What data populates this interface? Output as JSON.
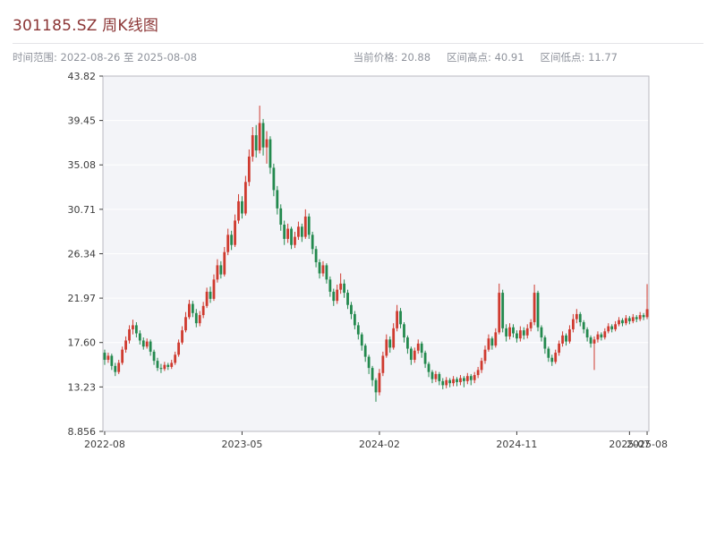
{
  "header": {
    "title": "301185.SZ 周K线图",
    "subtitle": "时间范围: 2022-08-26 至 2025-08-08",
    "stats": [
      {
        "label": "当前价格:",
        "value": "20.88"
      },
      {
        "label": "区间高点:",
        "value": "40.91"
      },
      {
        "label": "区间低点:",
        "value": "11.77"
      }
    ]
  },
  "chart_data": {
    "type": "candlestick",
    "title": "301185.SZ 周K线图",
    "symbol": "301185.SZ",
    "interval": "weekly",
    "date_start": "2022-08-26",
    "date_end": "2025-08-08",
    "current_price": 20.88,
    "range_high": 40.91,
    "range_low": 11.77,
    "ylim": [
      8.856,
      43.82
    ],
    "y_ticks": [
      "43.82",
      "39.45",
      "35.08",
      "30.71",
      "26.34",
      "21.97",
      "17.60",
      "13.23",
      "8.856"
    ],
    "y_tick_values": [
      43.82,
      39.45,
      35.08,
      30.71,
      26.34,
      21.97,
      17.6,
      13.23,
      8.856
    ],
    "x_ticks": [
      {
        "label": "2022-08",
        "week": 0
      },
      {
        "label": "2023-05",
        "week": 39
      },
      {
        "label": "2024-02",
        "week": 78
      },
      {
        "label": "2024-11",
        "week": 117
      },
      {
        "label": "2025-07",
        "week": 149
      },
      {
        "label": "2025-08",
        "week": 154
      }
    ],
    "up_color": "#cf3a2f",
    "down_color": "#23894e",
    "plot_bg": "#f3f4f8",
    "grid_color": "#ffffff",
    "axis_color": "#3c3c3c",
    "border_color": "#b9b9c0",
    "grid": true,
    "legend": false,
    "candles_ohlc": [
      [
        16.6,
        16.9,
        15.4,
        15.9
      ],
      [
        15.9,
        16.6,
        15.6,
        16.3
      ],
      [
        16.3,
        16.5,
        14.9,
        15.3
      ],
      [
        15.3,
        15.6,
        14.3,
        14.7
      ],
      [
        14.7,
        15.9,
        14.5,
        15.6
      ],
      [
        15.6,
        17.2,
        15.4,
        16.9
      ],
      [
        16.9,
        18.2,
        16.6,
        17.8
      ],
      [
        17.8,
        19.3,
        17.5,
        18.9
      ],
      [
        18.9,
        19.85,
        18.4,
        19.3
      ],
      [
        19.3,
        19.6,
        18.1,
        18.5
      ],
      [
        18.5,
        18.8,
        17.4,
        17.8
      ],
      [
        17.8,
        18.1,
        16.9,
        17.2
      ],
      [
        17.2,
        18.0,
        17.0,
        17.7
      ],
      [
        17.7,
        17.9,
        16.3,
        16.7
      ],
      [
        16.7,
        16.9,
        15.4,
        15.8
      ],
      [
        15.8,
        16.1,
        14.8,
        15.1
      ],
      [
        15.1,
        15.5,
        14.6,
        15.0
      ],
      [
        15.0,
        15.7,
        14.8,
        15.4
      ],
      [
        15.4,
        15.6,
        14.9,
        15.2
      ],
      [
        15.2,
        15.9,
        15.0,
        15.6
      ],
      [
        15.6,
        16.7,
        15.4,
        16.4
      ],
      [
        16.4,
        17.9,
        16.2,
        17.6
      ],
      [
        17.6,
        19.2,
        17.4,
        18.8
      ],
      [
        18.8,
        20.6,
        18.6,
        20.1
      ],
      [
        20.1,
        21.8,
        19.9,
        21.4
      ],
      [
        21.4,
        21.7,
        20.1,
        20.5
      ],
      [
        20.5,
        20.9,
        19.1,
        19.5
      ],
      [
        19.5,
        20.7,
        19.2,
        20.3
      ],
      [
        20.3,
        21.6,
        20.0,
        21.2
      ],
      [
        21.2,
        23.0,
        21.0,
        22.6
      ],
      [
        22.6,
        23.1,
        21.5,
        21.9
      ],
      [
        21.9,
        24.3,
        21.7,
        23.8
      ],
      [
        23.8,
        25.8,
        23.5,
        25.2
      ],
      [
        25.2,
        25.6,
        23.9,
        24.3
      ],
      [
        24.3,
        27.0,
        24.1,
        26.5
      ],
      [
        26.5,
        28.8,
        26.2,
        28.2
      ],
      [
        28.2,
        28.6,
        26.7,
        27.2
      ],
      [
        27.2,
        30.2,
        27.0,
        29.6
      ],
      [
        29.6,
        32.2,
        29.3,
        31.5
      ],
      [
        31.5,
        32.0,
        29.8,
        30.3
      ],
      [
        30.3,
        34.0,
        30.1,
        33.4
      ],
      [
        33.4,
        36.6,
        33.0,
        35.9
      ],
      [
        35.9,
        38.8,
        35.4,
        38.0
      ],
      [
        38.0,
        39.0,
        35.8,
        36.5
      ],
      [
        36.5,
        40.91,
        36.2,
        39.2
      ],
      [
        39.2,
        39.6,
        36.0,
        36.8
      ],
      [
        36.8,
        38.4,
        35.2,
        37.6
      ],
      [
        37.6,
        37.9,
        34.2,
        34.8
      ],
      [
        34.8,
        35.2,
        32.0,
        32.6
      ],
      [
        32.6,
        33.0,
        30.2,
        30.8
      ],
      [
        30.8,
        31.2,
        28.6,
        29.2
      ],
      [
        29.2,
        29.6,
        27.2,
        27.8
      ],
      [
        27.8,
        29.3,
        27.4,
        28.8
      ],
      [
        28.8,
        29.0,
        26.8,
        27.2
      ],
      [
        27.2,
        28.5,
        26.9,
        28.0
      ],
      [
        28.0,
        29.5,
        27.7,
        29.0
      ],
      [
        29.0,
        29.3,
        27.5,
        28.0
      ],
      [
        28.0,
        30.71,
        27.8,
        30.0
      ],
      [
        30.0,
        30.3,
        27.8,
        28.2
      ],
      [
        28.2,
        28.5,
        26.3,
        26.8
      ],
      [
        26.8,
        27.1,
        25.0,
        25.5
      ],
      [
        25.5,
        25.8,
        23.9,
        24.4
      ],
      [
        24.4,
        25.6,
        24.1,
        25.2
      ],
      [
        25.2,
        25.4,
        23.4,
        23.8
      ],
      [
        23.8,
        24.1,
        22.1,
        22.6
      ],
      [
        22.6,
        22.9,
        21.2,
        21.7
      ],
      [
        21.7,
        23.3,
        21.4,
        22.8
      ],
      [
        22.8,
        24.4,
        22.4,
        23.4
      ],
      [
        23.4,
        23.8,
        22.0,
        22.5
      ],
      [
        22.5,
        22.8,
        20.9,
        21.3
      ],
      [
        21.3,
        21.6,
        19.9,
        20.4
      ],
      [
        20.4,
        20.7,
        18.9,
        19.3
      ],
      [
        19.3,
        19.6,
        17.9,
        18.4
      ],
      [
        18.4,
        18.6,
        16.8,
        17.3
      ],
      [
        17.3,
        17.5,
        15.7,
        16.2
      ],
      [
        16.2,
        16.4,
        14.5,
        15.1
      ],
      [
        15.1,
        15.3,
        13.3,
        13.9
      ],
      [
        13.9,
        14.1,
        11.77,
        12.7
      ],
      [
        12.7,
        15.0,
        12.4,
        14.6
      ],
      [
        14.6,
        16.7,
        14.3,
        16.3
      ],
      [
        16.3,
        18.4,
        16.1,
        17.9
      ],
      [
        17.9,
        18.2,
        16.6,
        17.1
      ],
      [
        17.1,
        19.5,
        16.9,
        19.0
      ],
      [
        19.0,
        21.3,
        18.7,
        20.7
      ],
      [
        20.7,
        21.0,
        19.0,
        19.4
      ],
      [
        19.4,
        19.6,
        17.6,
        18.1
      ],
      [
        18.1,
        18.3,
        16.5,
        17.0
      ],
      [
        17.0,
        17.2,
        15.4,
        15.9
      ],
      [
        15.9,
        17.1,
        15.6,
        16.8
      ],
      [
        16.8,
        17.9,
        16.5,
        17.5
      ],
      [
        17.5,
        17.7,
        16.1,
        16.6
      ],
      [
        16.6,
        16.8,
        15.1,
        15.5
      ],
      [
        15.5,
        15.7,
        14.2,
        14.7
      ],
      [
        14.7,
        14.9,
        13.6,
        14.0
      ],
      [
        14.0,
        14.8,
        13.7,
        14.5
      ],
      [
        14.5,
        14.7,
        13.4,
        13.8
      ],
      [
        13.8,
        14.1,
        13.0,
        13.4
      ],
      [
        13.4,
        14.2,
        13.1,
        13.9
      ],
      [
        13.9,
        14.1,
        13.2,
        13.6
      ],
      [
        13.6,
        14.3,
        13.3,
        14.0
      ],
      [
        14.0,
        14.2,
        13.3,
        13.7
      ],
      [
        13.7,
        14.4,
        13.4,
        14.1
      ],
      [
        14.1,
        14.3,
        13.2,
        13.8
      ],
      [
        13.8,
        14.6,
        13.5,
        14.3
      ],
      [
        14.3,
        14.5,
        13.4,
        13.9
      ],
      [
        13.9,
        14.7,
        13.6,
        14.4
      ],
      [
        14.4,
        15.2,
        14.1,
        14.9
      ],
      [
        14.9,
        16.1,
        14.6,
        15.8
      ],
      [
        15.8,
        17.3,
        15.5,
        16.9
      ],
      [
        16.9,
        18.4,
        16.7,
        18.0
      ],
      [
        18.0,
        18.2,
        16.9,
        17.3
      ],
      [
        17.3,
        19.0,
        17.1,
        18.6
      ],
      [
        18.6,
        23.4,
        18.4,
        22.5
      ],
      [
        22.5,
        22.8,
        18.6,
        19.0
      ],
      [
        19.0,
        19.4,
        17.7,
        18.2
      ],
      [
        18.2,
        19.5,
        17.9,
        19.1
      ],
      [
        19.1,
        19.4,
        18.1,
        18.5
      ],
      [
        18.5,
        18.8,
        17.6,
        18.0
      ],
      [
        18.0,
        19.2,
        17.7,
        18.8
      ],
      [
        18.8,
        19.1,
        17.9,
        18.3
      ],
      [
        18.3,
        19.4,
        18.0,
        19.0
      ],
      [
        19.0,
        19.9,
        18.7,
        19.6
      ],
      [
        19.6,
        23.3,
        19.3,
        22.5
      ],
      [
        22.5,
        22.7,
        18.7,
        19.1
      ],
      [
        19.1,
        19.3,
        17.7,
        18.1
      ],
      [
        18.1,
        18.3,
        16.5,
        17.0
      ],
      [
        17.0,
        17.2,
        15.7,
        16.1
      ],
      [
        16.1,
        16.4,
        15.3,
        15.7
      ],
      [
        15.7,
        16.9,
        15.5,
        16.6
      ],
      [
        16.6,
        17.8,
        16.3,
        17.5
      ],
      [
        17.5,
        18.7,
        17.2,
        18.3
      ],
      [
        18.3,
        18.5,
        17.3,
        17.7
      ],
      [
        17.7,
        19.3,
        17.5,
        18.9
      ],
      [
        18.9,
        20.4,
        18.6,
        19.9
      ],
      [
        19.9,
        20.9,
        19.5,
        20.4
      ],
      [
        20.4,
        20.6,
        19.2,
        19.6
      ],
      [
        19.6,
        19.8,
        18.5,
        18.9
      ],
      [
        18.9,
        19.1,
        17.7,
        18.1
      ],
      [
        18.1,
        18.3,
        17.1,
        17.5
      ],
      [
        17.5,
        18.2,
        14.9,
        17.9
      ],
      [
        17.9,
        18.7,
        17.6,
        18.4
      ],
      [
        18.4,
        18.6,
        17.8,
        18.1
      ],
      [
        18.1,
        19.0,
        17.9,
        18.7
      ],
      [
        18.7,
        19.5,
        18.5,
        19.2
      ],
      [
        19.2,
        19.4,
        18.6,
        18.9
      ],
      [
        18.9,
        19.7,
        18.7,
        19.4
      ],
      [
        19.4,
        20.1,
        19.2,
        19.8
      ],
      [
        19.8,
        20.0,
        19.2,
        19.5
      ],
      [
        19.5,
        20.3,
        19.3,
        20.0
      ],
      [
        20.0,
        20.2,
        19.4,
        19.7
      ],
      [
        19.7,
        20.4,
        19.5,
        20.1
      ],
      [
        20.1,
        20.3,
        19.6,
        19.9
      ],
      [
        19.9,
        20.6,
        19.7,
        20.3
      ],
      [
        20.3,
        20.5,
        19.8,
        20.1
      ],
      [
        20.1,
        23.35,
        19.9,
        20.88
      ]
    ]
  }
}
